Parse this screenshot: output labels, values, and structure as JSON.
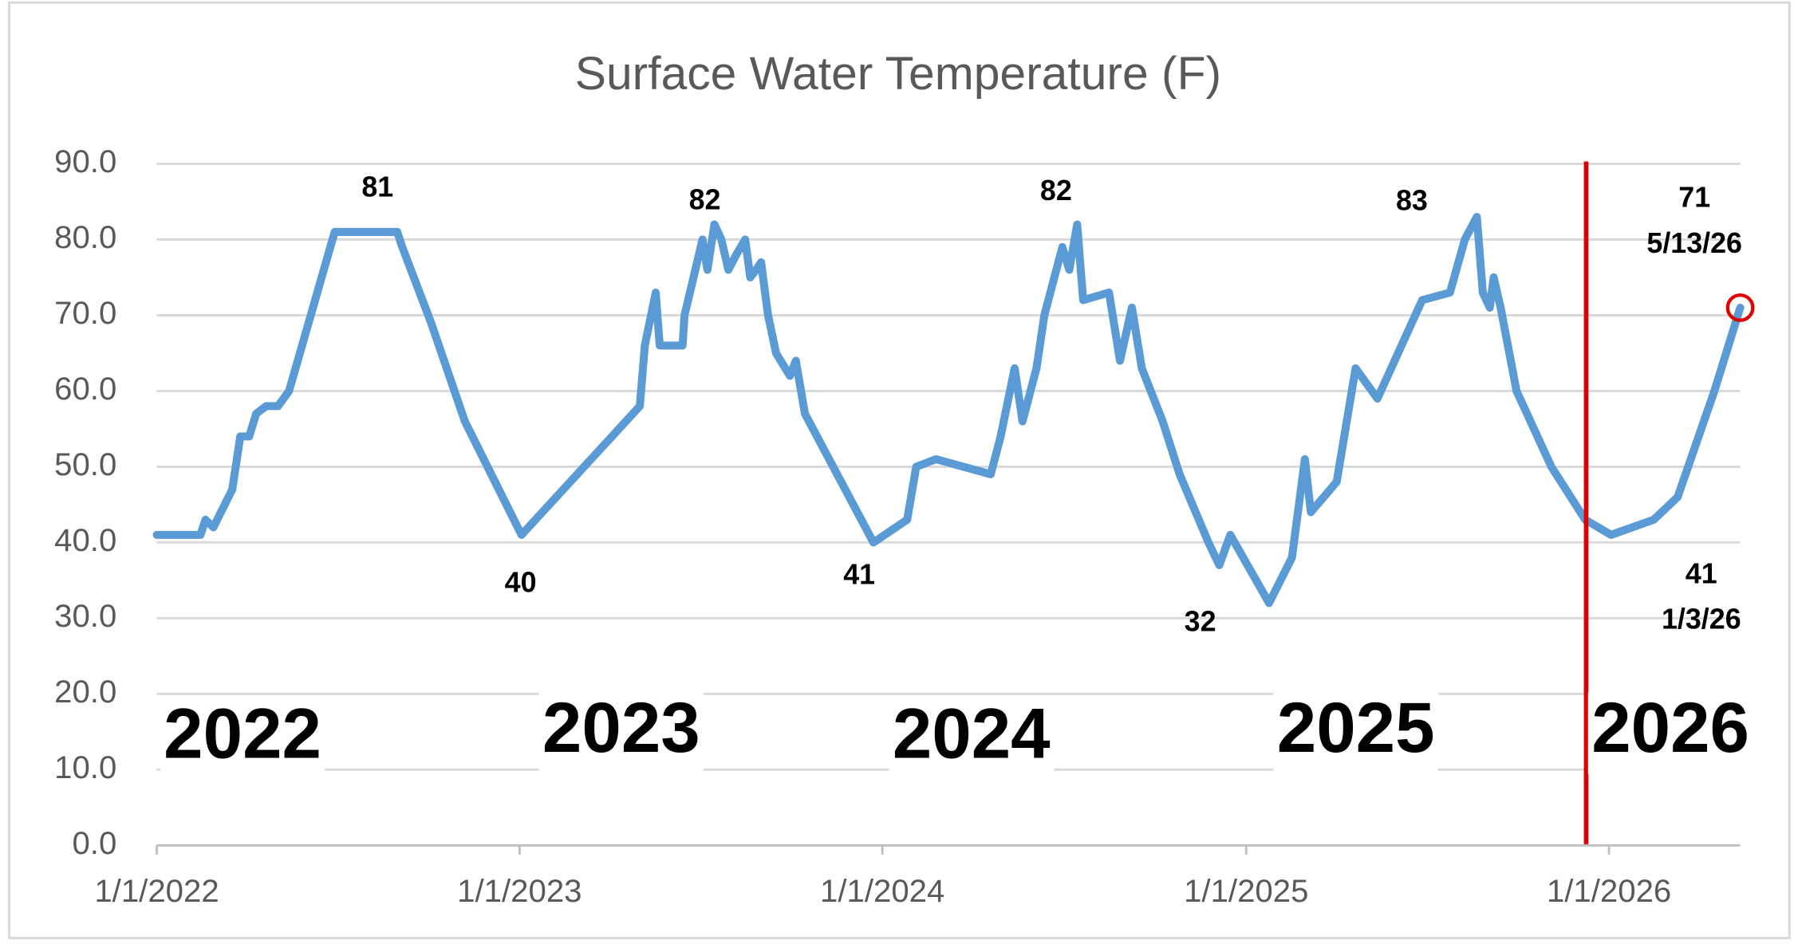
{
  "chart_data": {
    "type": "line",
    "title": "Surface Water Temperature (F)",
    "x": [
      "2022-01-01",
      "2022-02-14",
      "2022-02-19",
      "2022-02-27",
      "2022-03-18",
      "2022-03-26",
      "2022-04-04",
      "2022-04-11",
      "2022-04-21",
      "2022-05-03",
      "2022-05-14",
      "2022-06-29",
      "2022-08-31",
      "2022-09-05",
      "2022-10-04",
      "2022-11-07",
      "2023-01-03",
      "2023-05-02",
      "2023-05-07",
      "2023-05-18",
      "2023-05-22",
      "2023-06-14",
      "2023-06-16",
      "2023-07-04",
      "2023-07-09",
      "2023-07-16",
      "2023-07-23",
      "2023-07-30",
      "2023-08-07",
      "2023-08-16",
      "2023-08-21",
      "2023-08-27",
      "2023-09-01",
      "2023-09-08",
      "2023-09-16",
      "2023-09-30",
      "2023-10-06",
      "2023-10-15",
      "2023-12-23",
      "2024-01-26",
      "2024-02-04",
      "2024-02-24",
      "2024-04-19",
      "2024-04-29",
      "2024-05-13",
      "2024-05-21",
      "2024-06-04",
      "2024-06-12",
      "2024-06-30",
      "2024-07-07",
      "2024-07-15",
      "2024-07-21",
      "2024-08-16",
      "2024-08-27",
      "2024-09-08",
      "2024-09-18",
      "2024-10-09",
      "2024-10-26",
      "2024-11-24",
      "2024-12-05",
      "2024-12-16",
      "2025-01-24",
      "2025-02-16",
      "2025-03-01",
      "2025-03-07",
      "2025-04-02",
      "2025-04-21",
      "2025-05-13",
      "2025-06-27",
      "2025-07-25",
      "2025-08-09",
      "2025-08-21",
      "2025-08-27",
      "2025-09-03",
      "2025-09-07",
      "2025-09-14",
      "2025-09-30",
      "2025-11-04",
      "2025-12-08",
      "2026-01-03",
      "2026-02-15",
      "2026-03-11",
      "2026-04-17",
      "2026-05-13"
    ],
    "series": [
      {
        "name": "Surface Water Temperature (F)",
        "color": "#5b9bd5",
        "values": [
          41,
          41,
          43,
          42,
          47,
          54,
          54,
          57,
          58,
          58,
          60,
          81,
          81,
          79,
          69,
          56,
          41,
          58,
          66,
          73,
          66,
          66,
          70,
          80,
          76,
          82,
          80,
          76,
          78,
          80,
          75,
          76,
          77,
          70,
          65,
          62,
          64,
          57,
          40,
          43,
          50,
          51,
          49,
          54,
          63,
          56,
          63,
          70,
          79,
          76,
          82,
          72,
          73,
          64,
          71,
          63,
          56,
          49,
          40,
          37,
          41,
          32,
          38,
          51,
          44,
          48,
          63,
          59,
          72,
          73,
          80,
          83,
          73,
          71,
          75,
          71,
          60,
          50,
          43,
          41,
          43,
          46,
          60,
          71
        ]
      }
    ],
    "xlim": [
      "2022-01-01",
      "2026-05-13"
    ],
    "xticks": [
      {
        "value": "2022-01-01",
        "label": "1/1/2022"
      },
      {
        "value": "2023-01-01",
        "label": "1/1/2023"
      },
      {
        "value": "2024-01-01",
        "label": "1/1/2024"
      },
      {
        "value": "2025-01-01",
        "label": "1/1/2025"
      },
      {
        "value": "2026-01-01",
        "label": "1/1/2026"
      }
    ],
    "ylim": [
      0,
      90
    ],
    "yticks": [
      {
        "value": 0,
        "label": "0.0"
      },
      {
        "value": 10,
        "label": "10.0"
      },
      {
        "value": 20,
        "label": "20.0"
      },
      {
        "value": 30,
        "label": "30.0"
      },
      {
        "value": 40,
        "label": "40.0"
      },
      {
        "value": 50,
        "label": "50.0"
      },
      {
        "value": 60,
        "label": "60.0"
      },
      {
        "value": 70,
        "label": "70.0"
      },
      {
        "value": 80,
        "label": "80.0"
      },
      {
        "value": 90,
        "label": "90.0"
      }
    ],
    "grid": true,
    "marker_line": {
      "date": "2025-12-09",
      "color": "#e00000"
    },
    "annotations": [
      "81",
      "82",
      "82",
      "83",
      "71",
      "5/13/26",
      "40",
      "41",
      "32",
      "41",
      "1/3/26"
    ],
    "year_labels": [
      "2022",
      "2023",
      "2024",
      "2025",
      "2026"
    ]
  }
}
